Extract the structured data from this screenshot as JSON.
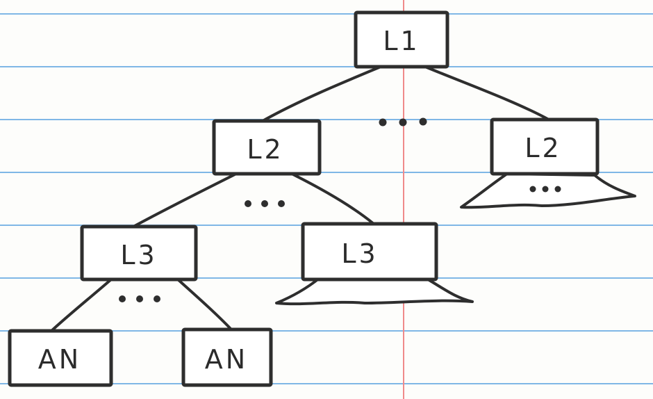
{
  "diagram": {
    "nodes": {
      "root": "L1",
      "l2_left": "L2",
      "l2_right": "L2",
      "l3_left": "L3",
      "l3_right": "L3",
      "leaf_left": "AN",
      "leaf_right": "AN"
    },
    "ellipses": {
      "between_l2": "...",
      "between_l3": "...",
      "between_leaves": "...",
      "under_l2_right": "..."
    }
  }
}
